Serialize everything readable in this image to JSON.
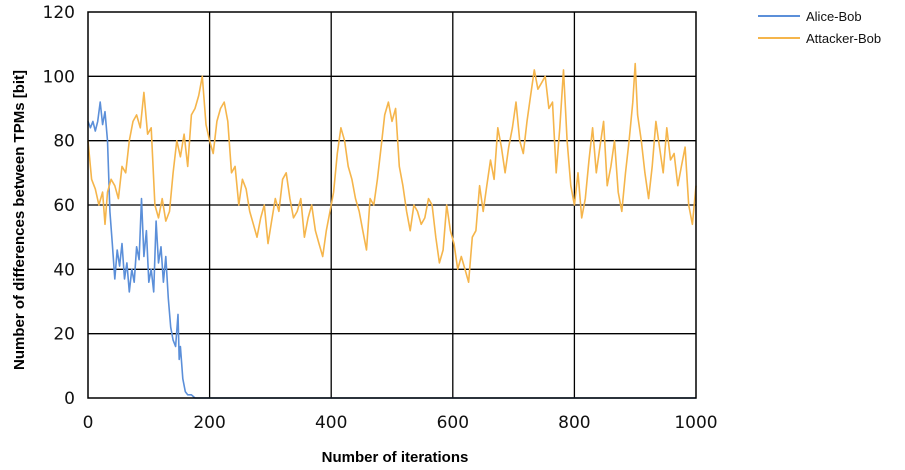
{
  "chart_data": {
    "type": "line",
    "title": "",
    "xlabel": "Number of iterations",
    "ylabel": "Number of differences between TPMs  [bit]",
    "xlim": [
      0,
      1000
    ],
    "ylim": [
      0,
      120
    ],
    "xticks": [
      "0",
      "200",
      "400",
      "600",
      "800",
      "1000"
    ],
    "yticks": [
      "0",
      "20",
      "40",
      "60",
      "80",
      "100",
      "120"
    ],
    "grid": true,
    "legend_position": "top-right-outside",
    "series": [
      {
        "name": "Alice-Bob",
        "color": "#5b8fd9",
        "points": [
          [
            0,
            86
          ],
          [
            4,
            84
          ],
          [
            8,
            86
          ],
          [
            12,
            83
          ],
          [
            16,
            86
          ],
          [
            20,
            92
          ],
          [
            24,
            85
          ],
          [
            28,
            89
          ],
          [
            32,
            80
          ],
          [
            36,
            58
          ],
          [
            40,
            48
          ],
          [
            44,
            37
          ],
          [
            48,
            46
          ],
          [
            52,
            41
          ],
          [
            56,
            48
          ],
          [
            60,
            37
          ],
          [
            64,
            42
          ],
          [
            68,
            33
          ],
          [
            72,
            40
          ],
          [
            76,
            36
          ],
          [
            80,
            47
          ],
          [
            84,
            43
          ],
          [
            88,
            62
          ],
          [
            92,
            44
          ],
          [
            96,
            52
          ],
          [
            100,
            36
          ],
          [
            104,
            40
          ],
          [
            108,
            33
          ],
          [
            112,
            55
          ],
          [
            116,
            42
          ],
          [
            120,
            47
          ],
          [
            124,
            36
          ],
          [
            128,
            44
          ],
          [
            132,
            31
          ],
          [
            136,
            22
          ],
          [
            140,
            18
          ],
          [
            144,
            16
          ],
          [
            148,
            26
          ],
          [
            150,
            12
          ],
          [
            152,
            16
          ],
          [
            156,
            6
          ],
          [
            160,
            2
          ],
          [
            164,
            1
          ],
          [
            170,
            1
          ],
          [
            176,
            0
          ],
          [
            200,
            0
          ],
          [
            300,
            0
          ],
          [
            400,
            0
          ],
          [
            500,
            0
          ],
          [
            600,
            0
          ],
          [
            700,
            0
          ],
          [
            800,
            0
          ],
          [
            900,
            0
          ],
          [
            1000,
            0
          ]
        ]
      },
      {
        "name": "Attacker-Bob",
        "color": "#f5b54b",
        "points": [
          [
            0,
            80
          ],
          [
            6,
            68
          ],
          [
            12,
            65
          ],
          [
            18,
            60
          ],
          [
            24,
            64
          ],
          [
            28,
            54
          ],
          [
            32,
            64
          ],
          [
            38,
            68
          ],
          [
            44,
            66
          ],
          [
            50,
            62
          ],
          [
            56,
            72
          ],
          [
            62,
            70
          ],
          [
            68,
            80
          ],
          [
            74,
            86
          ],
          [
            80,
            88
          ],
          [
            86,
            84
          ],
          [
            92,
            95
          ],
          [
            98,
            82
          ],
          [
            104,
            84
          ],
          [
            110,
            60
          ],
          [
            116,
            56
          ],
          [
            122,
            62
          ],
          [
            128,
            55
          ],
          [
            134,
            58
          ],
          [
            140,
            70
          ],
          [
            146,
            80
          ],
          [
            152,
            75
          ],
          [
            158,
            82
          ],
          [
            164,
            72
          ],
          [
            170,
            88
          ],
          [
            176,
            90
          ],
          [
            182,
            94
          ],
          [
            188,
            100
          ],
          [
            194,
            85
          ],
          [
            200,
            80
          ],
          [
            206,
            76
          ],
          [
            212,
            86
          ],
          [
            218,
            90
          ],
          [
            224,
            92
          ],
          [
            230,
            86
          ],
          [
            236,
            70
          ],
          [
            242,
            72
          ],
          [
            248,
            60
          ],
          [
            254,
            68
          ],
          [
            260,
            65
          ],
          [
            266,
            58
          ],
          [
            272,
            54
          ],
          [
            278,
            50
          ],
          [
            284,
            56
          ],
          [
            290,
            60
          ],
          [
            296,
            48
          ],
          [
            302,
            55
          ],
          [
            308,
            62
          ],
          [
            314,
            58
          ],
          [
            320,
            68
          ],
          [
            326,
            70
          ],
          [
            332,
            62
          ],
          [
            338,
            56
          ],
          [
            344,
            58
          ],
          [
            350,
            62
          ],
          [
            356,
            50
          ],
          [
            362,
            56
          ],
          [
            368,
            60
          ],
          [
            374,
            52
          ],
          [
            380,
            48
          ],
          [
            386,
            44
          ],
          [
            392,
            52
          ],
          [
            398,
            58
          ],
          [
            404,
            64
          ],
          [
            410,
            76
          ],
          [
            416,
            84
          ],
          [
            422,
            80
          ],
          [
            428,
            72
          ],
          [
            434,
            68
          ],
          [
            440,
            62
          ],
          [
            446,
            58
          ],
          [
            452,
            52
          ],
          [
            458,
            46
          ],
          [
            464,
            62
          ],
          [
            470,
            60
          ],
          [
            476,
            68
          ],
          [
            482,
            78
          ],
          [
            488,
            88
          ],
          [
            494,
            92
          ],
          [
            500,
            86
          ],
          [
            506,
            90
          ],
          [
            512,
            72
          ],
          [
            518,
            66
          ],
          [
            524,
            58
          ],
          [
            530,
            52
          ],
          [
            536,
            60
          ],
          [
            542,
            58
          ],
          [
            548,
            54
          ],
          [
            554,
            56
          ],
          [
            560,
            62
          ],
          [
            566,
            60
          ],
          [
            572,
            50
          ],
          [
            578,
            42
          ],
          [
            584,
            46
          ],
          [
            590,
            60
          ],
          [
            596,
            52
          ],
          [
            602,
            48
          ],
          [
            608,
            40
          ],
          [
            614,
            44
          ],
          [
            620,
            40
          ],
          [
            626,
            36
          ],
          [
            632,
            50
          ],
          [
            638,
            52
          ],
          [
            644,
            66
          ],
          [
            650,
            58
          ],
          [
            656,
            66
          ],
          [
            662,
            74
          ],
          [
            668,
            68
          ],
          [
            674,
            84
          ],
          [
            680,
            78
          ],
          [
            686,
            70
          ],
          [
            692,
            78
          ],
          [
            698,
            84
          ],
          [
            704,
            92
          ],
          [
            710,
            80
          ],
          [
            716,
            76
          ],
          [
            722,
            86
          ],
          [
            728,
            94
          ],
          [
            734,
            102
          ],
          [
            740,
            96
          ],
          [
            746,
            98
          ],
          [
            752,
            100
          ],
          [
            758,
            90
          ],
          [
            764,
            92
          ],
          [
            770,
            70
          ],
          [
            776,
            84
          ],
          [
            782,
            102
          ],
          [
            788,
            80
          ],
          [
            794,
            66
          ],
          [
            800,
            60
          ],
          [
            806,
            70
          ],
          [
            812,
            56
          ],
          [
            818,
            62
          ],
          [
            824,
            74
          ],
          [
            830,
            84
          ],
          [
            836,
            70
          ],
          [
            842,
            78
          ],
          [
            848,
            86
          ],
          [
            854,
            66
          ],
          [
            860,
            72
          ],
          [
            866,
            80
          ],
          [
            872,
            64
          ],
          [
            878,
            58
          ],
          [
            884,
            70
          ],
          [
            890,
            80
          ],
          [
            896,
            92
          ],
          [
            900,
            104
          ],
          [
            904,
            88
          ],
          [
            910,
            80
          ],
          [
            916,
            70
          ],
          [
            922,
            62
          ],
          [
            928,
            72
          ],
          [
            934,
            86
          ],
          [
            940,
            78
          ],
          [
            946,
            70
          ],
          [
            952,
            84
          ],
          [
            958,
            74
          ],
          [
            964,
            76
          ],
          [
            970,
            66
          ],
          [
            976,
            72
          ],
          [
            982,
            78
          ],
          [
            988,
            60
          ],
          [
            994,
            54
          ],
          [
            1000,
            66
          ]
        ]
      }
    ]
  }
}
